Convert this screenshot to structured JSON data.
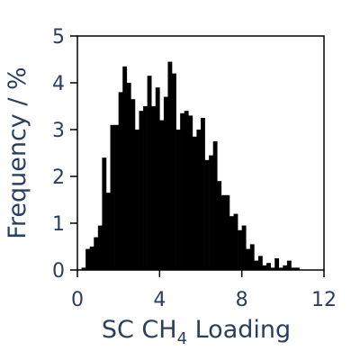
{
  "chart_data": {
    "type": "bar",
    "title": "",
    "xlabel": {
      "main": "SC CH",
      "subscript": "4",
      "suffix": " Loading"
    },
    "ylabel": "Frequency / %",
    "xlim": [
      0,
      12
    ],
    "ylim": [
      0,
      5
    ],
    "xticks": [
      0,
      4,
      8,
      12
    ],
    "yticks": [
      0,
      1,
      2,
      3,
      4,
      5
    ],
    "grid": false,
    "bar_color": "#000000",
    "axis_text_color": "#2a3f5f",
    "bin_width": 0.2,
    "bin_start": 0.0,
    "values": [
      0.0,
      0.05,
      0.45,
      0.5,
      0.7,
      0.95,
      2.4,
      1.65,
      3.1,
      3.1,
      3.8,
      4.35,
      4.0,
      3.65,
      3.0,
      3.4,
      3.5,
      4.15,
      3.5,
      3.9,
      3.2,
      3.7,
      4.45,
      4.2,
      3.0,
      3.35,
      3.4,
      3.3,
      2.85,
      3.0,
      3.25,
      2.35,
      2.45,
      2.75,
      1.9,
      1.6,
      1.6,
      1.15,
      1.2,
      0.85,
      0.95,
      0.45,
      0.55,
      0.2,
      0.3,
      0.1,
      0.15,
      0.05,
      0.25,
      0.05,
      0.1,
      0.2,
      0.05,
      0.05,
      0.0,
      0.0,
      0.0,
      0.0,
      0.0,
      0.0,
      0.0,
      0.0,
      0.0,
      0.0,
      0.0,
      0.0,
      0.0,
      0.0,
      0.0,
      0.0,
      0.0,
      0.0,
      0.08
    ]
  }
}
